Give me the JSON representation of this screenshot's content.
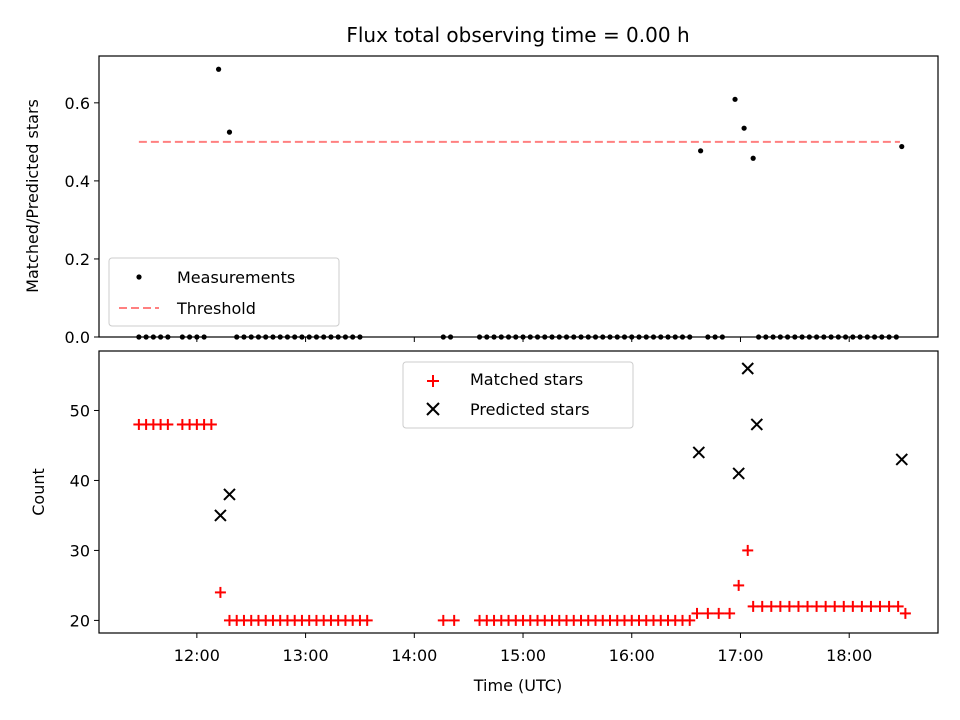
{
  "chart_data": [
    {
      "type": "scatter",
      "title": "Flux total observing time = 0.00 h",
      "xlabel": "",
      "ylabel": "Matched/Predicted stars",
      "ylim": [
        0,
        0.72
      ],
      "xlim": [
        "11:06",
        "18:49"
      ],
      "yticks": [
        "0.0",
        "0.2",
        "0.4",
        "0.6"
      ],
      "legend_position": "lower-left",
      "legend": [
        {
          "label": "Measurements",
          "marker": "dot",
          "color": "#000000"
        },
        {
          "label": "Threshold",
          "marker": "dashed-line",
          "color": "#ff8080"
        }
      ],
      "threshold": {
        "value": 0.5,
        "x_range": [
          "11:28",
          "18:28"
        ]
      },
      "series": [
        {
          "name": "Measurements",
          "color": "#000000",
          "points": [
            [
              "11:28",
              0
            ],
            [
              "11:32",
              0
            ],
            [
              "11:36",
              0
            ],
            [
              "11:40",
              0
            ],
            [
              "11:44",
              0
            ],
            [
              "11:52",
              0
            ],
            [
              "11:56",
              0
            ],
            [
              "12:00",
              0
            ],
            [
              "12:04",
              0
            ],
            [
              "12:12",
              0.686
            ],
            [
              "12:18",
              0.525
            ],
            [
              "12:22",
              0
            ],
            [
              "12:26",
              0
            ],
            [
              "12:30",
              0
            ],
            [
              "12:34",
              0
            ],
            [
              "12:38",
              0
            ],
            [
              "12:42",
              0
            ],
            [
              "12:46",
              0
            ],
            [
              "12:50",
              0
            ],
            [
              "12:54",
              0
            ],
            [
              "12:58",
              0
            ],
            [
              "13:02",
              0
            ],
            [
              "13:06",
              0
            ],
            [
              "13:10",
              0
            ],
            [
              "13:14",
              0
            ],
            [
              "13:18",
              0
            ],
            [
              "13:22",
              0
            ],
            [
              "13:26",
              0
            ],
            [
              "13:30",
              0
            ],
            [
              "14:16",
              0
            ],
            [
              "14:20",
              0
            ],
            [
              "14:36",
              0
            ],
            [
              "14:40",
              0
            ],
            [
              "14:44",
              0
            ],
            [
              "14:48",
              0
            ],
            [
              "14:52",
              0
            ],
            [
              "14:56",
              0
            ],
            [
              "15:00",
              0
            ],
            [
              "15:04",
              0
            ],
            [
              "15:08",
              0
            ],
            [
              "15:12",
              0
            ],
            [
              "15:16",
              0
            ],
            [
              "15:20",
              0
            ],
            [
              "15:24",
              0
            ],
            [
              "15:28",
              0
            ],
            [
              "15:32",
              0
            ],
            [
              "15:36",
              0
            ],
            [
              "15:40",
              0
            ],
            [
              "15:44",
              0
            ],
            [
              "15:48",
              0
            ],
            [
              "15:52",
              0
            ],
            [
              "15:56",
              0
            ],
            [
              "16:00",
              0
            ],
            [
              "16:04",
              0
            ],
            [
              "16:08",
              0
            ],
            [
              "16:12",
              0
            ],
            [
              "16:16",
              0
            ],
            [
              "16:20",
              0
            ],
            [
              "16:24",
              0
            ],
            [
              "16:28",
              0
            ],
            [
              "16:32",
              0
            ],
            [
              "16:38",
              0.477
            ],
            [
              "16:42",
              0
            ],
            [
              "16:46",
              0
            ],
            [
              "16:50",
              0
            ],
            [
              "16:57",
              0.609
            ],
            [
              "17:02",
              0.535
            ],
            [
              "17:07",
              0.458
            ],
            [
              "17:10",
              0
            ],
            [
              "17:14",
              0
            ],
            [
              "17:18",
              0
            ],
            [
              "17:22",
              0
            ],
            [
              "17:26",
              0
            ],
            [
              "17:30",
              0
            ],
            [
              "17:34",
              0
            ],
            [
              "17:38",
              0
            ],
            [
              "17:42",
              0
            ],
            [
              "17:46",
              0
            ],
            [
              "17:50",
              0
            ],
            [
              "17:54",
              0
            ],
            [
              "17:58",
              0
            ],
            [
              "18:02",
              0
            ],
            [
              "18:06",
              0
            ],
            [
              "18:10",
              0
            ],
            [
              "18:14",
              0
            ],
            [
              "18:18",
              0
            ],
            [
              "18:22",
              0
            ],
            [
              "18:26",
              0
            ],
            [
              "18:29",
              0.488
            ]
          ]
        }
      ]
    },
    {
      "type": "scatter",
      "title": "",
      "xlabel": "Time (UTC)",
      "ylabel": "Count",
      "ylim": [
        18.2,
        58.5
      ],
      "xlim": [
        "11:06",
        "18:49"
      ],
      "yticks": [
        "20",
        "30",
        "40",
        "50"
      ],
      "xticks": [
        "12:00",
        "13:00",
        "14:00",
        "15:00",
        "16:00",
        "17:00",
        "18:00"
      ],
      "legend_position": "top-center",
      "legend": [
        {
          "label": "Matched stars",
          "marker": "plus",
          "color": "#ff0000"
        },
        {
          "label": "Predicted stars",
          "marker": "x",
          "color": "#000000"
        }
      ],
      "series": [
        {
          "name": "Matched stars",
          "marker": "plus",
          "color": "#ff0000",
          "points": [
            [
              "11:28",
              48
            ],
            [
              "11:32",
              48
            ],
            [
              "11:36",
              48
            ],
            [
              "11:40",
              48
            ],
            [
              "11:44",
              48
            ],
            [
              "11:52",
              48
            ],
            [
              "11:56",
              48
            ],
            [
              "12:00",
              48
            ],
            [
              "12:04",
              48
            ],
            [
              "12:08",
              48
            ],
            [
              "12:13",
              24
            ],
            [
              "12:18",
              20
            ],
            [
              "12:22",
              20
            ],
            [
              "12:26",
              20
            ],
            [
              "12:30",
              20
            ],
            [
              "12:34",
              20
            ],
            [
              "12:38",
              20
            ],
            [
              "12:42",
              20
            ],
            [
              "12:46",
              20
            ],
            [
              "12:50",
              20
            ],
            [
              "12:54",
              20
            ],
            [
              "12:58",
              20
            ],
            [
              "13:02",
              20
            ],
            [
              "13:06",
              20
            ],
            [
              "13:10",
              20
            ],
            [
              "13:14",
              20
            ],
            [
              "13:18",
              20
            ],
            [
              "13:22",
              20
            ],
            [
              "13:26",
              20
            ],
            [
              "13:30",
              20
            ],
            [
              "13:34",
              20
            ],
            [
              "14:16",
              20
            ],
            [
              "14:22",
              20
            ],
            [
              "14:36",
              20
            ],
            [
              "14:40",
              20
            ],
            [
              "14:44",
              20
            ],
            [
              "14:48",
              20
            ],
            [
              "14:52",
              20
            ],
            [
              "14:56",
              20
            ],
            [
              "15:00",
              20
            ],
            [
              "15:04",
              20
            ],
            [
              "15:08",
              20
            ],
            [
              "15:12",
              20
            ],
            [
              "15:16",
              20
            ],
            [
              "15:20",
              20
            ],
            [
              "15:24",
              20
            ],
            [
              "15:28",
              20
            ],
            [
              "15:32",
              20
            ],
            [
              "15:36",
              20
            ],
            [
              "15:40",
              20
            ],
            [
              "15:44",
              20
            ],
            [
              "15:48",
              20
            ],
            [
              "15:52",
              20
            ],
            [
              "15:56",
              20
            ],
            [
              "16:00",
              20
            ],
            [
              "16:04",
              20
            ],
            [
              "16:08",
              20
            ],
            [
              "16:12",
              20
            ],
            [
              "16:16",
              20
            ],
            [
              "16:20",
              20
            ],
            [
              "16:24",
              20
            ],
            [
              "16:28",
              20
            ],
            [
              "16:32",
              20
            ],
            [
              "16:36",
              21
            ],
            [
              "16:42",
              21
            ],
            [
              "16:48",
              21
            ],
            [
              "16:54",
              21
            ],
            [
              "16:59",
              25
            ],
            [
              "17:04",
              30
            ],
            [
              "17:07",
              22
            ],
            [
              "17:12",
              22
            ],
            [
              "17:17",
              22
            ],
            [
              "17:22",
              22
            ],
            [
              "17:27",
              22
            ],
            [
              "17:32",
              22
            ],
            [
              "17:37",
              22
            ],
            [
              "17:42",
              22
            ],
            [
              "17:47",
              22
            ],
            [
              "17:52",
              22
            ],
            [
              "17:57",
              22
            ],
            [
              "18:02",
              22
            ],
            [
              "18:07",
              22
            ],
            [
              "18:12",
              22
            ],
            [
              "18:17",
              22
            ],
            [
              "18:22",
              22
            ],
            [
              "18:27",
              22
            ],
            [
              "18:31",
              21
            ]
          ]
        },
        {
          "name": "Predicted stars",
          "marker": "x",
          "color": "#000000",
          "points": [
            [
              "12:13",
              35
            ],
            [
              "12:18",
              38
            ],
            [
              "16:37",
              44
            ],
            [
              "16:59",
              41
            ],
            [
              "17:04",
              56
            ],
            [
              "17:09",
              48
            ],
            [
              "18:29",
              43
            ]
          ]
        }
      ]
    }
  ]
}
